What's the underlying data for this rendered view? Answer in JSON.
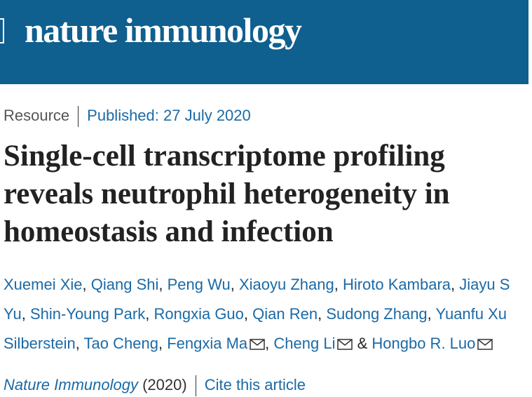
{
  "header": {
    "logo": "nature immunology"
  },
  "meta": {
    "type": "Resource",
    "published": "Published: 27 July 2020"
  },
  "title": {
    "lines": [
      "Single-cell transcriptome profiling",
      "reveals neutrophil heterogeneity in",
      "homeostasis and infection"
    ]
  },
  "authors": {
    "lines": [
      [
        {
          "text": "Xuemei Xie",
          "kind": "link"
        },
        {
          "text": ", ",
          "kind": "sep"
        },
        {
          "text": "Qiang Shi",
          "kind": "link"
        },
        {
          "text": ", ",
          "kind": "sep"
        },
        {
          "text": "Peng Wu",
          "kind": "link"
        },
        {
          "text": ", ",
          "kind": "sep"
        },
        {
          "text": "Xiaoyu Zhang",
          "kind": "link"
        },
        {
          "text": ", ",
          "kind": "sep"
        },
        {
          "text": "Hiroto Kambara",
          "kind": "link"
        },
        {
          "text": ", ",
          "kind": "sep"
        },
        {
          "text": "Jiayu S",
          "kind": "link"
        }
      ],
      [
        {
          "text": "Yu",
          "kind": "link"
        },
        {
          "text": ", ",
          "kind": "sep"
        },
        {
          "text": "Shin-Young Park",
          "kind": "link"
        },
        {
          "text": ", ",
          "kind": "sep"
        },
        {
          "text": "Rongxia Guo",
          "kind": "link"
        },
        {
          "text": ", ",
          "kind": "sep"
        },
        {
          "text": "Qian Ren",
          "kind": "link"
        },
        {
          "text": ", ",
          "kind": "sep"
        },
        {
          "text": "Sudong Zhang",
          "kind": "link"
        },
        {
          "text": ", ",
          "kind": "sep"
        },
        {
          "text": "Yuanfu Xu",
          "kind": "link"
        }
      ],
      [
        {
          "text": "Silberstein",
          "kind": "link"
        },
        {
          "text": ", ",
          "kind": "sep"
        },
        {
          "text": "Tao Cheng",
          "kind": "link"
        },
        {
          "text": ", ",
          "kind": "sep"
        },
        {
          "text": "Fengxia Ma",
          "kind": "link",
          "mail": true
        },
        {
          "text": ", ",
          "kind": "sep"
        },
        {
          "text": "Cheng Li",
          "kind": "link",
          "mail": true
        },
        {
          "text": " & ",
          "kind": "sep"
        },
        {
          "text": "Hongbo R. Luo",
          "kind": "link",
          "mail": true
        }
      ]
    ]
  },
  "citation": {
    "journal": "Nature Immunology",
    "year": "(2020)",
    "cite": "Cite this article"
  }
}
